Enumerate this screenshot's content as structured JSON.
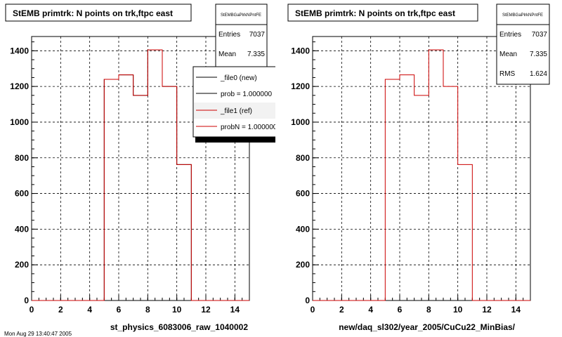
{
  "chart_data": [
    {
      "type": "bar",
      "title": "StEMB primtrk: N points on trk,ftpc east",
      "xlabel": "st_physics_6083006_raw_1040002",
      "xlim": [
        0,
        15
      ],
      "ylim": [
        0,
        1480
      ],
      "x_ticks": [
        "0",
        "2",
        "4",
        "6",
        "8",
        "10",
        "12",
        "14"
      ],
      "y_ticks": [
        "0",
        "200",
        "400",
        "600",
        "800",
        "1000",
        "1200",
        "1400"
      ],
      "bin_width": 1,
      "bin_edges": [
        0,
        1,
        2,
        3,
        4,
        5,
        6,
        7,
        8,
        9,
        10,
        11,
        12,
        13,
        14,
        15
      ],
      "grid": true,
      "series": [
        {
          "name": "_file0 (new)",
          "color": "#000000",
          "values": [
            0,
            0,
            0,
            0,
            0,
            1240,
            1265,
            1150,
            1405,
            1200,
            762,
            0,
            0,
            0,
            0
          ]
        },
        {
          "name": "_file1 (ref)",
          "color": "#cc0000",
          "values": [
            0,
            0,
            0,
            0,
            0,
            1240,
            1265,
            1150,
            1405,
            1200,
            762,
            0,
            0,
            0,
            0
          ]
        }
      ],
      "stats": {
        "name": "StEMBGaPlrkNPntFE",
        "entries_label": "Entries",
        "entries": "7037",
        "mean_label": "Mean",
        "mean": "7.335"
      },
      "legend": {
        "placement": "top-right",
        "entries": [
          {
            "label": "_file0 (new)",
            "color": "#000000"
          },
          {
            "label": "prob = 1.000000",
            "color": "#000000"
          },
          {
            "label": "_file1 (ref)",
            "color": "#cc0000"
          },
          {
            "label": "probN = 1.000000",
            "color": "#cc0000"
          }
        ]
      }
    },
    {
      "type": "bar",
      "title": "StEMB primtrk: N points on trk,ftpc east",
      "xlabel": "new/daq_sl302/year_2005/CuCu22_MinBias/",
      "xlim": [
        0,
        15
      ],
      "ylim": [
        0,
        1480
      ],
      "x_ticks": [
        "0",
        "2",
        "4",
        "6",
        "8",
        "10",
        "12",
        "14"
      ],
      "y_ticks": [
        "0",
        "200",
        "400",
        "600",
        "800",
        "1000",
        "1200",
        "1400"
      ],
      "bin_width": 1,
      "bin_edges": [
        0,
        1,
        2,
        3,
        4,
        5,
        6,
        7,
        8,
        9,
        10,
        11,
        12,
        13,
        14,
        15
      ],
      "grid": true,
      "series": [
        {
          "name": "",
          "color": "#cc0000",
          "values": [
            0,
            0,
            0,
            0,
            0,
            1240,
            1265,
            1150,
            1405,
            1200,
            762,
            0,
            0,
            0,
            0
          ]
        }
      ],
      "stats": {
        "name": "StEMBGaPlrkNPntFE",
        "entries_label": "Entries",
        "entries": "7037",
        "mean_label": "Mean",
        "mean": "7.335",
        "rms_label": "RMS",
        "rms": "1.624"
      }
    }
  ],
  "footer_text": "Mon Aug 29 13:40:47 2005"
}
